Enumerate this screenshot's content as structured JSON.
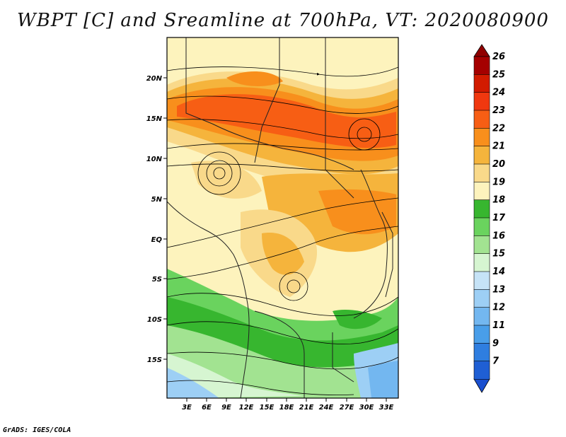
{
  "title": "WBPT [C] and Sreamline at 700hPa, VT: 2020080900",
  "credit": "GrADS: IGES/COLA",
  "lat_labels": [
    "20N",
    "15N",
    "10N",
    "5N",
    "EQ",
    "5S",
    "10S",
    "15S"
  ],
  "lon_labels": [
    "3E",
    "6E",
    "9E",
    "12E",
    "15E",
    "18E",
    "21E",
    "24E",
    "27E",
    "30E",
    "33E"
  ],
  "colorbar": {
    "labels": [
      "26",
      "25",
      "24",
      "23",
      "22",
      "21",
      "20",
      "19",
      "18",
      "17",
      "16",
      "15",
      "14",
      "13",
      "12",
      "11",
      "9",
      "7"
    ],
    "colors": [
      "#a50000",
      "#d21b00",
      "#f0380f",
      "#f75e14",
      "#f88f1c",
      "#f5b43c",
      "#f9d98a",
      "#fdf3bd",
      "#37b62f",
      "#6ad35e",
      "#a2e391",
      "#d6f5d1",
      "#c6e3f7",
      "#9dcff5",
      "#73b7f0",
      "#499ee9",
      "#2f7ee0",
      "#1f5fd4"
    ],
    "top_arrow_color": "#900000",
    "bottom_arrow_color": "#1a4fcf"
  }
}
